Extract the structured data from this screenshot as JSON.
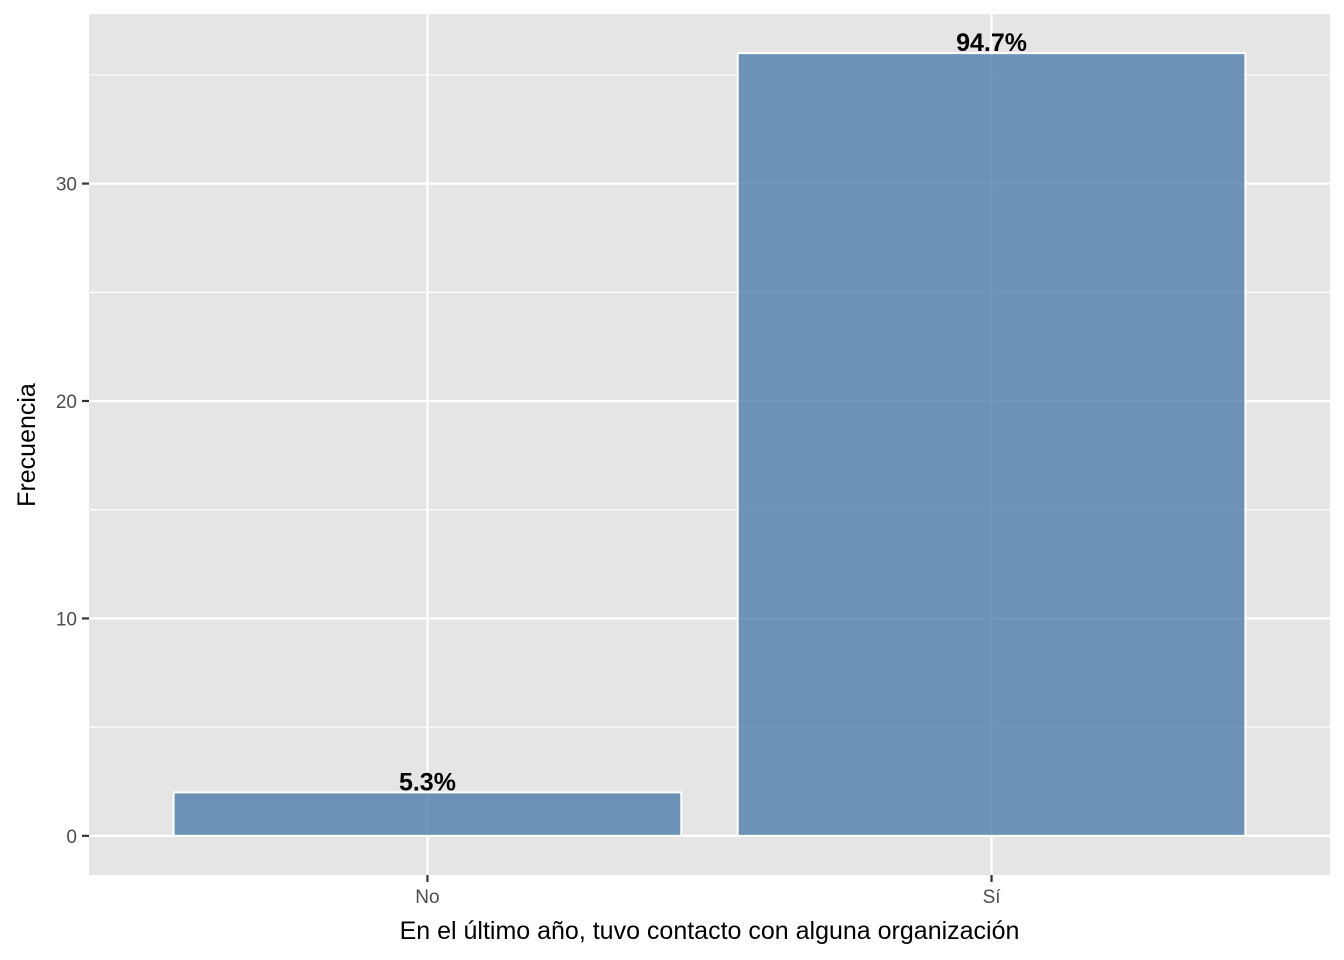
{
  "chart_data": {
    "type": "bar",
    "title": "",
    "xlabel": "En el último año, tuvo contacto con alguna organización",
    "ylabel": "Frecuencia",
    "categories": [
      "No",
      "Sí"
    ],
    "values": [
      2,
      36
    ],
    "data_labels": [
      "5.3%",
      "94.7%"
    ],
    "ylim": [
      -1.8,
      37.8
    ],
    "yticks": [
      0,
      10,
      20,
      30
    ],
    "ytick_labels": [
      "0",
      "10",
      "20",
      "30"
    ],
    "grid": true,
    "legend": "none",
    "colors": {
      "bar_fill": "#4F7DAD",
      "bar_outline": "#ffffff",
      "panel_background": "#e5e5e5",
      "grid": "#ffffff",
      "tick_text": "#4d4d4d",
      "title_text": "#000000"
    }
  }
}
